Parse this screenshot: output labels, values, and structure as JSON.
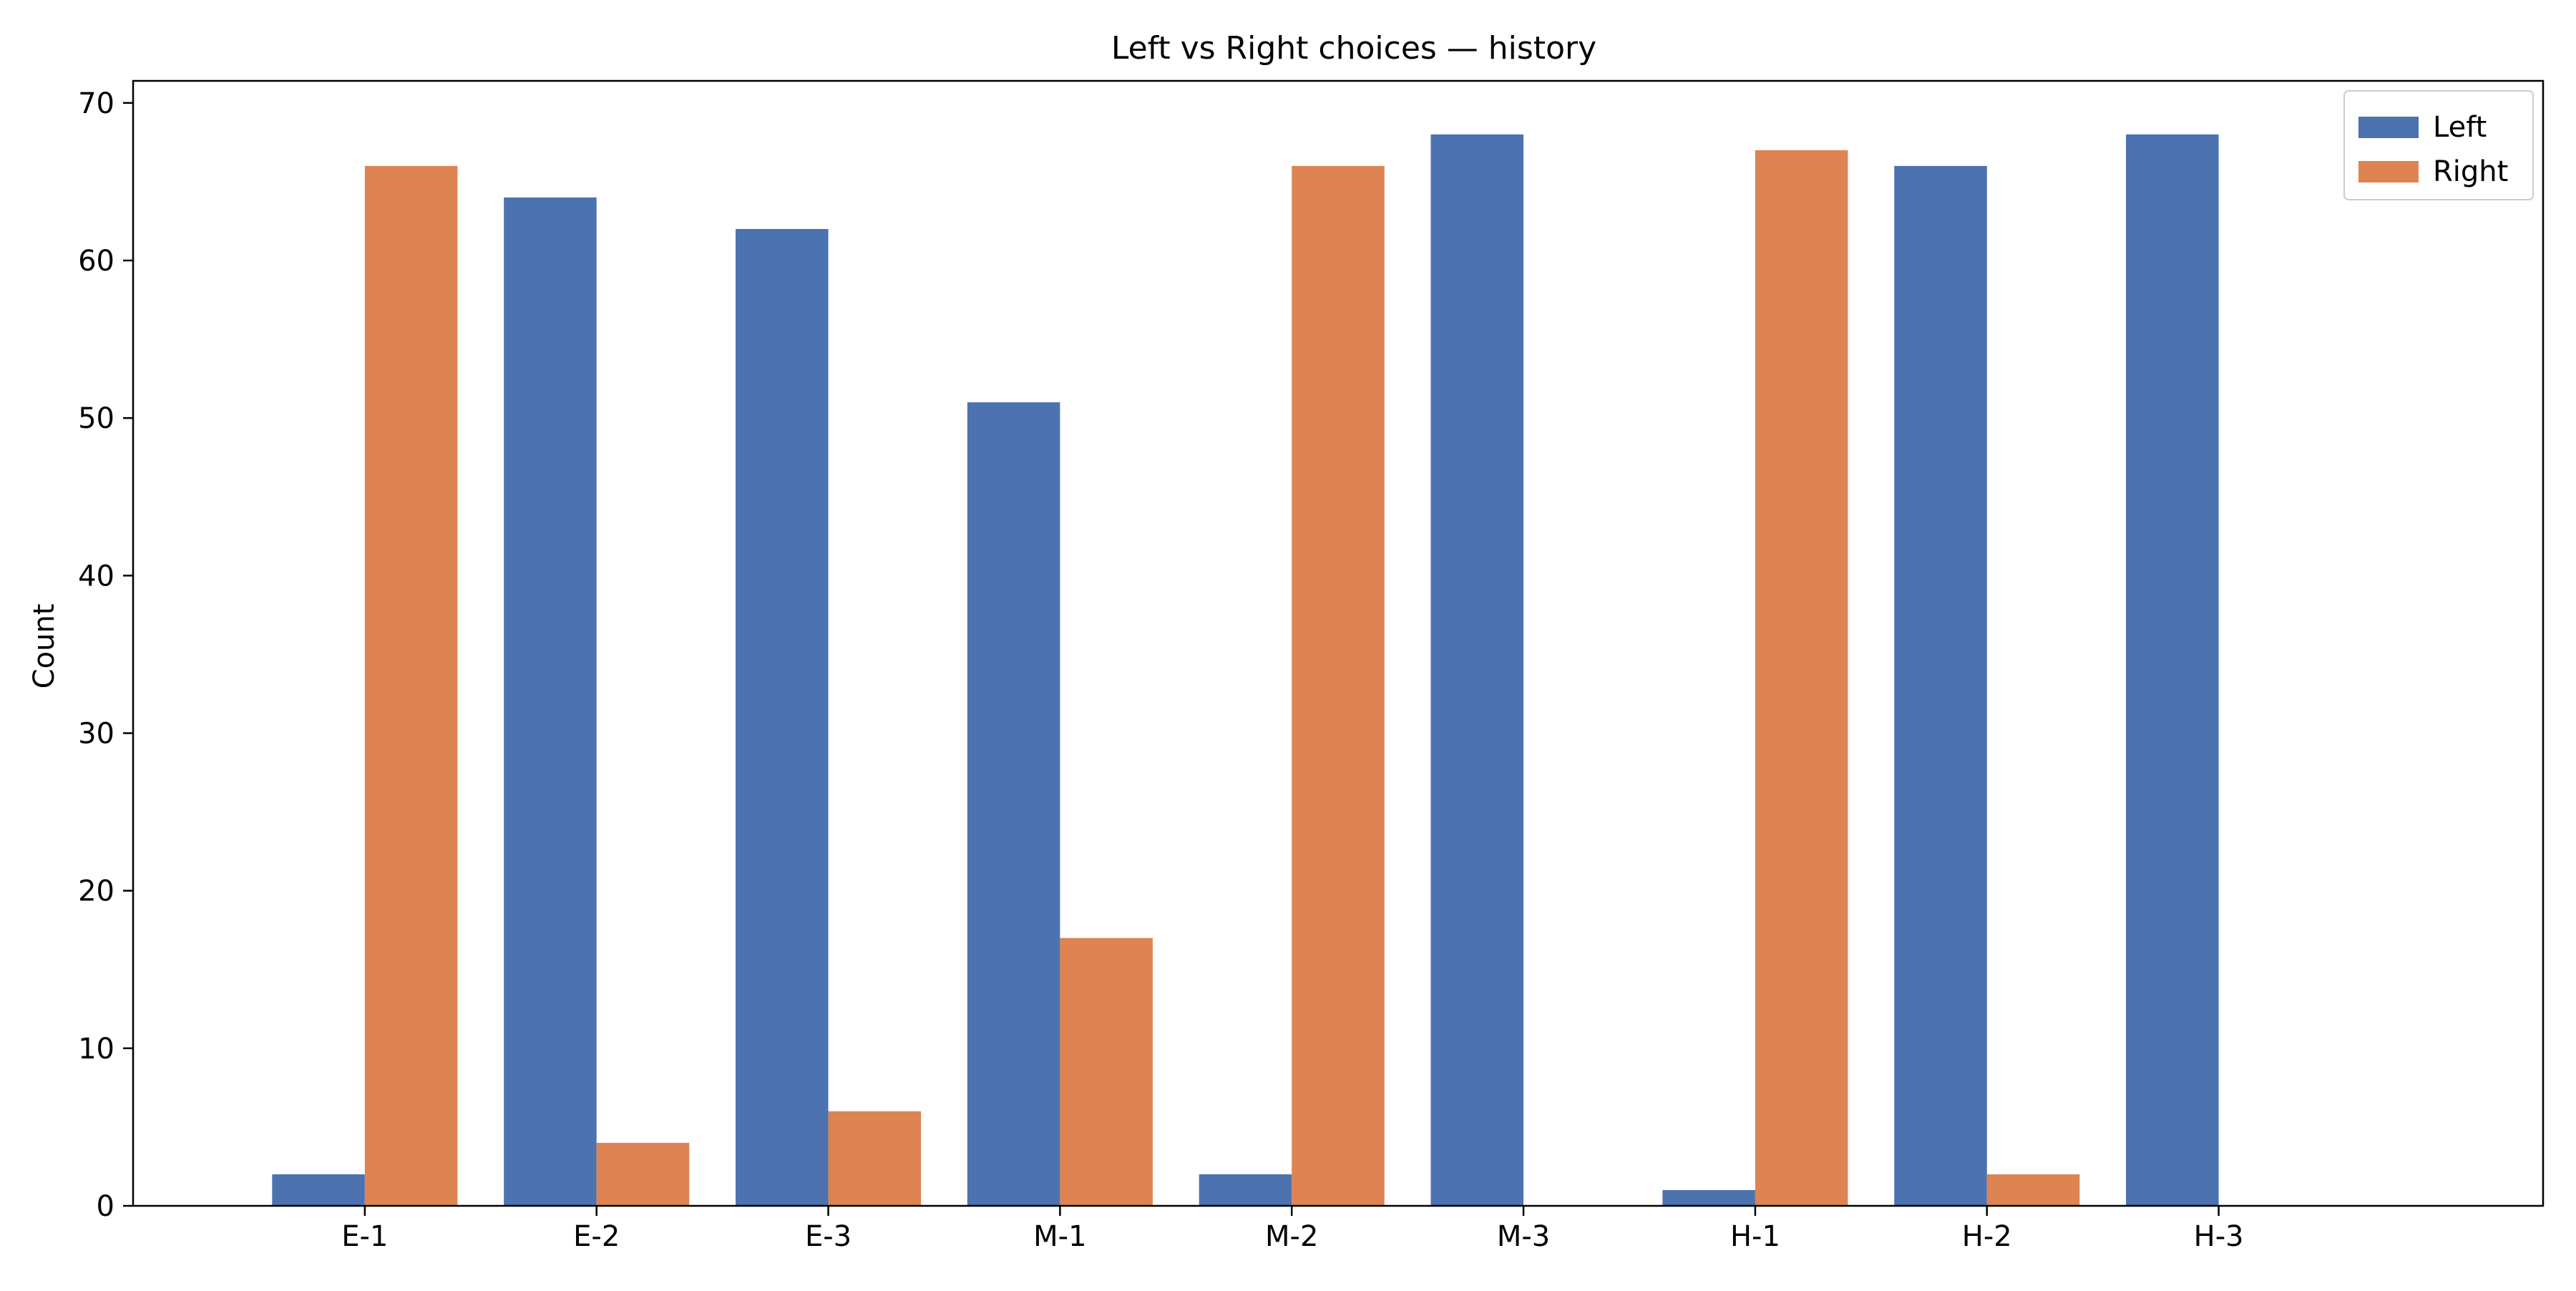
{
  "chart_data": {
    "type": "bar",
    "title": "Left vs Right choices — history",
    "xlabel": "",
    "ylabel": "Count",
    "categories": [
      "E-1",
      "E-2",
      "E-3",
      "M-1",
      "M-2",
      "M-3",
      "H-1",
      "H-2",
      "H-3"
    ],
    "series": [
      {
        "name": "Left",
        "color": "#4c72b0",
        "values": [
          2,
          64,
          62,
          51,
          2,
          68,
          1,
          66,
          68
        ]
      },
      {
        "name": "Right",
        "color": "#dd8452",
        "values": [
          66,
          4,
          6,
          17,
          66,
          0,
          67,
          2,
          0
        ]
      }
    ],
    "ylim": [
      0,
      71.4
    ],
    "yticks": [
      0,
      10,
      20,
      30,
      40,
      50,
      60,
      70
    ],
    "grid": false,
    "legend": "top-right"
  }
}
